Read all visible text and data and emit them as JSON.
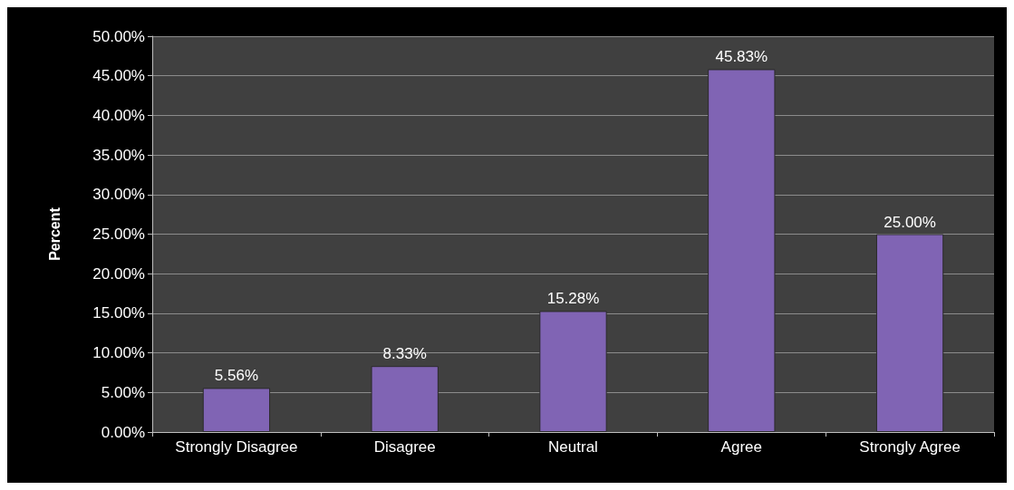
{
  "chart_data": {
    "type": "bar",
    "ylabel": "Percent",
    "categories": [
      "Strongly Disagree",
      "Disagree",
      "Neutral",
      "Agree",
      "Strongly Agree"
    ],
    "values": [
      5.56,
      8.33,
      15.28,
      45.83,
      25.0
    ],
    "value_labels": [
      "5.56%",
      "8.33%",
      "15.28%",
      "45.83%",
      "25.00%"
    ],
    "color": "#8064b4",
    "ylim": [
      0,
      50
    ],
    "yticks": [
      {
        "value": 0,
        "label": "0.00%"
      },
      {
        "value": 5,
        "label": "5.00%"
      },
      {
        "value": 10,
        "label": "10.00%"
      },
      {
        "value": 15,
        "label": "15.00%"
      },
      {
        "value": 20,
        "label": "20.00%"
      },
      {
        "value": 25,
        "label": "25.00%"
      },
      {
        "value": 30,
        "label": "30.00%"
      },
      {
        "value": 35,
        "label": "35.00%"
      },
      {
        "value": 40,
        "label": "40.00%"
      },
      {
        "value": 45,
        "label": "45.00%"
      },
      {
        "value": 50,
        "label": "50.00%"
      }
    ],
    "grid": "y"
  }
}
